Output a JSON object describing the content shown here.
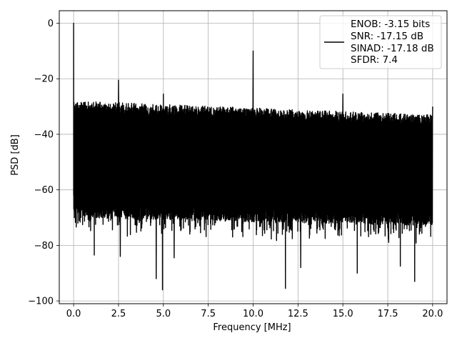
{
  "chart_data": {
    "type": "line",
    "xlabel": "Frequency [MHz]",
    "ylabel": "PSD [dB]",
    "xlim": [
      -0.8,
      20.8
    ],
    "ylim": [
      -101,
      4.5
    ],
    "xticks": [
      0.0,
      2.5,
      5.0,
      7.5,
      10.0,
      12.5,
      15.0,
      17.5,
      20.0
    ],
    "xtick_labels": [
      "0.0",
      "2.5",
      "5.0",
      "7.5",
      "10.0",
      "12.5",
      "15.0",
      "17.5",
      "20.0"
    ],
    "yticks": [
      0,
      -20,
      -40,
      -60,
      -80,
      -100
    ],
    "ytick_labels": [
      "0",
      "−20",
      "−40",
      "−60",
      "−80",
      "−100"
    ],
    "grid": true,
    "legend_position": "top-right",
    "series": [
      {
        "color": "#000000",
        "noise_floor": {
          "x_range": [
            0.0,
            20.0
          ],
          "upper_db": [
            -28,
            -33
          ],
          "lower_db": [
            -70,
            -73
          ],
          "min_dips_db": -96
        },
        "peaks": [
          {
            "x": 0.0,
            "y": 0
          },
          {
            "x": 2.5,
            "y": -20.5
          },
          {
            "x": 5.0,
            "y": -25.5
          },
          {
            "x": 10.0,
            "y": -10
          },
          {
            "x": 15.0,
            "y": -25.5
          },
          {
            "x": 20.0,
            "y": -30
          }
        ],
        "dips": [
          {
            "x": 1.15,
            "y": -83.5
          },
          {
            "x": 2.6,
            "y": -84
          },
          {
            "x": 4.6,
            "y": -92
          },
          {
            "x": 4.95,
            "y": -96
          },
          {
            "x": 5.6,
            "y": -84.5
          },
          {
            "x": 11.8,
            "y": -95.5
          },
          {
            "x": 12.65,
            "y": -88
          },
          {
            "x": 15.8,
            "y": -90
          },
          {
            "x": 18.2,
            "y": -87.5
          },
          {
            "x": 19.0,
            "y": -93
          }
        ]
      }
    ],
    "legend": {
      "lines": [
        "ENOB: -3.15 bits",
        "SNR: -17.15 dB",
        "SINAD: -17.18 dB",
        "SFDR: 7.4"
      ]
    }
  }
}
